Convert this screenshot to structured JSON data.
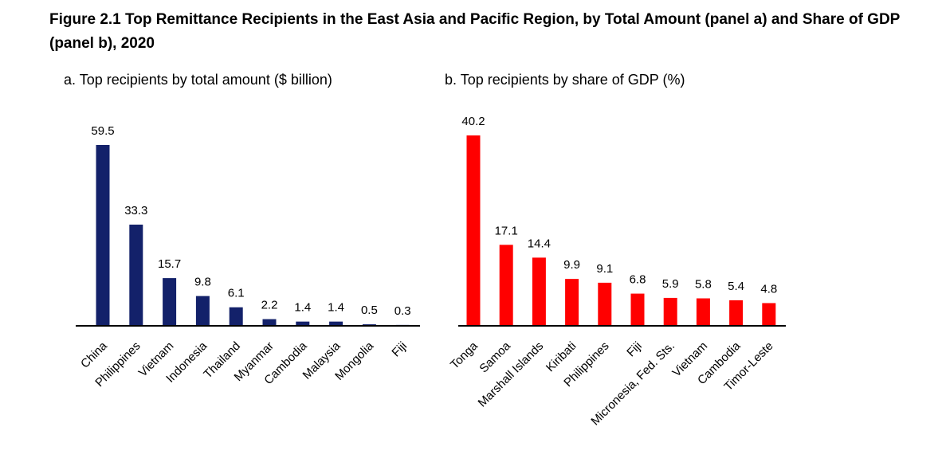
{
  "figure": {
    "title": "Figure 2.1 Top Remittance Recipients in the East Asia and Pacific Region, by Total Amount (panel a) and Share of GDP (panel b), 2020"
  },
  "chart_data": [
    {
      "type": "bar",
      "title": "a. Top recipients by total amount ($ billion)",
      "categories": [
        "China",
        "Philippines",
        "Vietnam",
        "Indonesia",
        "Thailand",
        "Myanmar",
        "Cambodia",
        "Malaysia",
        "Mongolia",
        "Fiji"
      ],
      "values": [
        59.5,
        33.3,
        15.7,
        9.8,
        6.1,
        2.2,
        1.4,
        1.4,
        0.5,
        0.3
      ],
      "value_labels": [
        "59.5",
        "33.3",
        "15.7",
        "9.8",
        "6.1",
        "2.2",
        "1.4",
        "1.4",
        "0.5",
        "0.3"
      ],
      "ylim": [
        0,
        60
      ],
      "color": "#13216a",
      "grid": false
    },
    {
      "type": "bar",
      "title": "b. Top recipients by share of GDP (%)",
      "categories": [
        "Tonga",
        "Samoa",
        "Marshall Islands",
        "Kiribati",
        "Philippines",
        "Fiji",
        "Micronesia, Fed. Sts.",
        "Vietnam",
        "Cambodia",
        "Timor-Leste"
      ],
      "values": [
        40.2,
        17.1,
        14.4,
        9.9,
        9.1,
        6.8,
        5.9,
        5.8,
        5.4,
        4.8
      ],
      "value_labels": [
        "40.2",
        "17.1",
        "14.4",
        "9.9",
        "9.1",
        "6.8",
        "5.9",
        "5.8",
        "5.4",
        "4.8"
      ],
      "ylim": [
        0,
        42
      ],
      "color": "#ff0000",
      "grid": false
    }
  ]
}
